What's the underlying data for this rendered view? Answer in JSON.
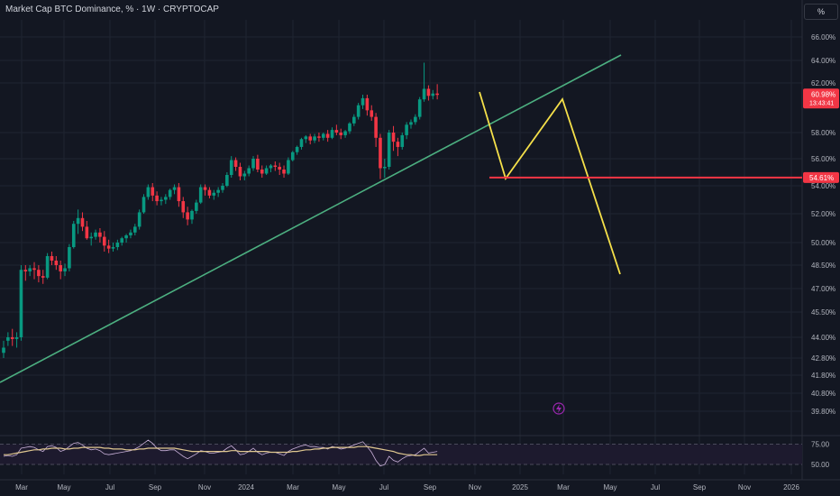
{
  "header": {
    "title": "Market Cap BTC Dominance, % · 1W · CRYPTOCAP",
    "unit_button": "%"
  },
  "price_tag": {
    "value": "60.98%",
    "countdown": "13:43:41",
    "color": "#f23645"
  },
  "support_tag": {
    "value": "54.61%",
    "color": "#f23645"
  },
  "lightning_icon": "lightning-icon",
  "colors": {
    "up": "#089981",
    "down": "#f23645",
    "trend": "#4caf80",
    "projection": "#f5e04a",
    "support": "#f23645",
    "rsi": "#c8b0d8",
    "rsi_ma": "#e0c890"
  },
  "chart_data": {
    "type": "candlestick",
    "title": "Market Cap BTC Dominance, % · 1W · CRYPTOCAP",
    "y_ticks": [
      "66.00%",
      "64.00%",
      "62.00%",
      "58.00%",
      "56.00%",
      "54.00%",
      "52.00%",
      "50.00%",
      "48.50%",
      "47.00%",
      "45.50%",
      "44.00%",
      "42.80%",
      "41.80%",
      "40.80%",
      "39.80%"
    ],
    "x_ticks": [
      "Mar",
      "May",
      "Jul",
      "Sep",
      "Nov",
      "2024",
      "Mar",
      "May",
      "Jul",
      "Sep",
      "Nov",
      "2025",
      "Mar",
      "May",
      "Jul",
      "Sep",
      "Nov",
      "2026"
    ],
    "candles": [
      [
        43.1,
        43.8,
        43.4,
        42.8
      ],
      [
        43.8,
        44.3,
        44.0,
        43.5
      ],
      [
        44.0,
        44.5,
        43.9,
        43.5
      ],
      [
        43.9,
        44.3,
        44.0,
        43.4
      ],
      [
        44.0,
        48.5,
        48.2,
        43.8
      ],
      [
        48.2,
        48.5,
        48.1,
        47.5
      ],
      [
        48.1,
        48.5,
        48.3,
        47.8
      ],
      [
        48.3,
        48.7,
        48.2,
        47.6
      ],
      [
        48.2,
        48.5,
        47.8,
        47.4
      ],
      [
        47.8,
        48.2,
        47.7,
        47.3
      ],
      [
        47.7,
        49.3,
        49.1,
        47.6
      ],
      [
        49.1,
        49.4,
        48.8,
        48.5
      ],
      [
        48.8,
        49.1,
        48.5,
        48.2
      ],
      [
        48.5,
        48.8,
        48.1,
        47.6
      ],
      [
        48.1,
        48.6,
        48.3,
        47.8
      ],
      [
        48.3,
        49.9,
        49.7,
        48.1
      ],
      [
        49.7,
        51.5,
        51.3,
        49.6
      ],
      [
        51.3,
        52.3,
        51.7,
        50.6
      ],
      [
        51.7,
        52.1,
        51.1,
        50.8
      ],
      [
        51.1,
        51.5,
        50.3,
        50.2
      ],
      [
        50.3,
        50.7,
        50.4,
        49.8
      ],
      [
        50.4,
        50.9,
        50.7,
        50.2
      ],
      [
        50.7,
        51.0,
        50.4,
        50.0
      ],
      [
        50.4,
        50.8,
        49.8,
        49.4
      ],
      [
        49.8,
        50.2,
        49.6,
        49.3
      ],
      [
        49.6,
        50.0,
        49.7,
        49.4
      ],
      [
        49.7,
        50.2,
        50.0,
        49.5
      ],
      [
        50.0,
        50.4,
        50.3,
        49.8
      ],
      [
        50.3,
        50.6,
        50.5,
        50.0
      ],
      [
        50.5,
        50.9,
        50.7,
        50.3
      ],
      [
        50.7,
        51.3,
        51.1,
        50.5
      ],
      [
        51.1,
        52.3,
        52.1,
        50.9
      ],
      [
        52.1,
        53.4,
        53.2,
        52.0
      ],
      [
        53.2,
        54.1,
        53.9,
        53.0
      ],
      [
        53.9,
        54.2,
        53.3,
        52.9
      ],
      [
        53.3,
        53.6,
        52.9,
        52.6
      ],
      [
        52.9,
        53.2,
        53.0,
        52.6
      ],
      [
        53.0,
        53.4,
        53.2,
        52.7
      ],
      [
        53.2,
        53.8,
        53.7,
        53.0
      ],
      [
        53.7,
        54.1,
        53.9,
        53.4
      ],
      [
        53.9,
        54.2,
        52.9,
        52.5
      ],
      [
        52.9,
        53.2,
        52.1,
        51.7
      ],
      [
        52.1,
        52.5,
        51.6,
        51.2
      ],
      [
        51.6,
        52.3,
        52.2,
        51.3
      ],
      [
        52.2,
        53.0,
        52.8,
        52.0
      ],
      [
        52.8,
        54.1,
        53.9,
        52.7
      ],
      [
        53.9,
        54.1,
        53.7,
        53.3
      ],
      [
        53.7,
        53.9,
        53.3,
        53.1
      ],
      [
        53.3,
        53.7,
        53.5,
        53.0
      ],
      [
        53.5,
        53.9,
        53.7,
        53.2
      ],
      [
        53.7,
        54.2,
        54.0,
        53.5
      ],
      [
        54.0,
        55.0,
        54.8,
        53.9
      ],
      [
        54.8,
        56.2,
        55.9,
        54.6
      ],
      [
        55.9,
        56.1,
        55.4,
        55.1
      ],
      [
        55.4,
        55.7,
        54.7,
        54.4
      ],
      [
        54.7,
        55.1,
        54.9,
        54.4
      ],
      [
        54.9,
        55.5,
        55.3,
        54.7
      ],
      [
        55.3,
        56.2,
        56.0,
        55.1
      ],
      [
        56.0,
        56.3,
        55.2,
        55.0
      ],
      [
        55.2,
        55.5,
        54.9,
        54.6
      ],
      [
        54.9,
        55.5,
        55.3,
        54.8
      ],
      [
        55.3,
        55.6,
        55.5,
        55.0
      ],
      [
        55.5,
        55.8,
        55.4,
        55.1
      ],
      [
        55.4,
        55.7,
        55.2,
        54.8
      ],
      [
        55.2,
        55.5,
        54.9,
        54.6
      ],
      [
        54.9,
        56.1,
        55.9,
        54.8
      ],
      [
        55.9,
        56.6,
        56.5,
        55.8
      ],
      [
        56.5,
        57.0,
        56.9,
        56.3
      ],
      [
        56.9,
        57.6,
        57.5,
        56.7
      ],
      [
        57.5,
        57.8,
        57.7,
        57.2
      ],
      [
        57.7,
        57.9,
        57.4,
        57.1
      ],
      [
        57.4,
        57.9,
        57.7,
        57.2
      ],
      [
        57.7,
        58.0,
        57.6,
        57.3
      ],
      [
        57.6,
        58.0,
        57.9,
        57.4
      ],
      [
        57.9,
        58.2,
        57.6,
        57.3
      ],
      [
        57.6,
        58.4,
        58.2,
        57.5
      ],
      [
        58.2,
        58.6,
        58.0,
        57.8
      ],
      [
        58.0,
        58.3,
        57.8,
        57.5
      ],
      [
        57.8,
        58.2,
        58.1,
        57.6
      ],
      [
        58.1,
        58.8,
        58.7,
        57.9
      ],
      [
        58.7,
        59.4,
        59.2,
        58.5
      ],
      [
        59.2,
        60.3,
        60.1,
        59.0
      ],
      [
        60.1,
        61.0,
        60.7,
        59.8
      ],
      [
        60.7,
        61.0,
        59.7,
        59.3
      ],
      [
        59.7,
        60.1,
        59.2,
        58.9
      ],
      [
        59.2,
        59.5,
        57.6,
        56.9
      ],
      [
        57.6,
        57.9,
        55.3,
        54.5
      ],
      [
        55.3,
        56.0,
        55.4,
        54.6
      ],
      [
        55.4,
        58.2,
        58.0,
        55.2
      ],
      [
        58.0,
        58.5,
        57.3,
        56.6
      ],
      [
        57.3,
        57.6,
        56.9,
        56.2
      ],
      [
        56.9,
        58.0,
        57.8,
        56.7
      ],
      [
        57.8,
        58.8,
        58.6,
        57.5
      ],
      [
        58.6,
        59.0,
        58.8,
        58.3
      ],
      [
        58.8,
        59.4,
        59.2,
        58.6
      ],
      [
        59.2,
        60.8,
        60.6,
        59.0
      ],
      [
        60.6,
        63.8,
        61.5,
        60.4
      ],
      [
        61.5,
        61.8,
        60.9,
        60.5
      ],
      [
        60.9,
        61.4,
        61.1,
        60.6
      ],
      [
        61.1,
        61.9,
        60.98,
        60.6
      ]
    ],
    "candle_start_x": 4,
    "candle_step": 4.86,
    "rsi_series": [
      60,
      61,
      60,
      62,
      70,
      71,
      72,
      71,
      68,
      66,
      72,
      73,
      71,
      66,
      68,
      72,
      76,
      77,
      74,
      70,
      68,
      69,
      67,
      63,
      62,
      63,
      64,
      65,
      66,
      67,
      69,
      72,
      76,
      80,
      76,
      70,
      67,
      67,
      68,
      68,
      64,
      60,
      57,
      60,
      63,
      67,
      66,
      64,
      64,
      65,
      66,
      70,
      73,
      68,
      62,
      63,
      66,
      70,
      65,
      62,
      64,
      65,
      65,
      63,
      61,
      66,
      69,
      71,
      73,
      74,
      72,
      72,
      71,
      71,
      69,
      72,
      71,
      69,
      70,
      72,
      74,
      76,
      78,
      72,
      65,
      55,
      48,
      50,
      60,
      55,
      53,
      57,
      60,
      61,
      62,
      66,
      70,
      64,
      65,
      66
    ],
    "rsi_ma_series": [
      62,
      62,
      63,
      64,
      65,
      66,
      67,
      68,
      68,
      69,
      69,
      70,
      70,
      70,
      69,
      69,
      70,
      70,
      71,
      71,
      71,
      71,
      71,
      70,
      70,
      69,
      69,
      69,
      68,
      68,
      68,
      69,
      69,
      70,
      70,
      70,
      70,
      70,
      70,
      70,
      69,
      68,
      67,
      66,
      66,
      66,
      66,
      66,
      66,
      66,
      66,
      66,
      67,
      67,
      66,
      66,
      66,
      66,
      66,
      66,
      66,
      65,
      65,
      65,
      65,
      65,
      66,
      66,
      67,
      68,
      68,
      69,
      69,
      70,
      70,
      71,
      71,
      71,
      71,
      71,
      71,
      72,
      72,
      72,
      71,
      70,
      69,
      68,
      67,
      66,
      64,
      63,
      62,
      62,
      61,
      61,
      62,
      62,
      62,
      62
    ],
    "rsi_levels": [
      "75.00",
      "50.00"
    ],
    "annotations": {
      "trendline": [
        [
          0,
          424
        ],
        [
          689,
          61
        ]
      ],
      "projection": [
        [
          532,
          102
        ],
        [
          561,
          198
        ],
        [
          624,
          110
        ],
        [
          688,
          304
        ]
      ],
      "support_y": 54.61
    }
  }
}
